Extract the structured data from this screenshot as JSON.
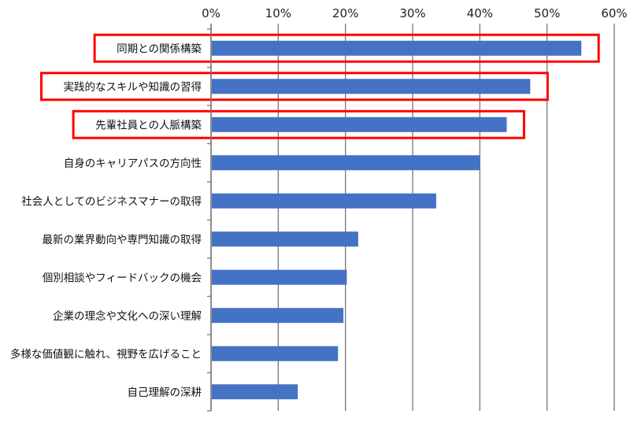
{
  "chart_data": {
    "type": "bar",
    "orientation": "horizontal",
    "categories": [
      "同期との関係構築",
      "実践的なスキルや知識の習得",
      "先輩社員との人脈構築",
      "自身のキャリアパスの方向性",
      "社会人としてのビジネスマナーの取得",
      "最新の業界動向や専門知識の取得",
      "個別相談やフィードバックの機会",
      "企業の理念や文化への深い理解",
      "多様な価値観に触れ、視野を広げること",
      "自己理解の深耕"
    ],
    "values": [
      55.1,
      47.5,
      44.0,
      40.0,
      33.5,
      21.9,
      20.2,
      19.7,
      18.9,
      12.9
    ],
    "highlighted": [
      true,
      true,
      true,
      false,
      false,
      false,
      false,
      false,
      false,
      false
    ],
    "xlim": [
      0,
      60
    ],
    "xticks": [
      "0%",
      "10%",
      "20%",
      "30%",
      "40%",
      "50%",
      "60%"
    ],
    "x_axis_position": "top",
    "grid": true,
    "colors": {
      "bar": "#4472c4",
      "highlight": "#ff0000",
      "grid": "#777777"
    }
  }
}
